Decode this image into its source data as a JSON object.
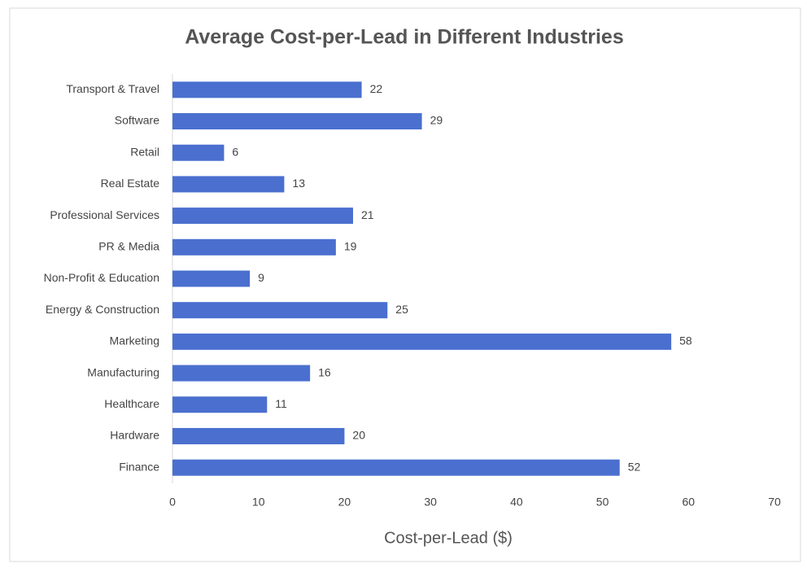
{
  "chart_data": {
    "type": "bar",
    "orientation": "horizontal",
    "title": "Average Cost-per-Lead in Different Industries",
    "x_label": "Cost-per-Lead ($)",
    "categories": [
      "Transport & Travel",
      "Software",
      "Retail",
      "Real Estate",
      "Professional Services",
      "PR & Media",
      "Non-Profit & Education",
      "Energy & Construction",
      "Marketing",
      "Manufacturing",
      "Healthcare",
      "Hardware",
      "Finance"
    ],
    "values": [
      22,
      29,
      6,
      13,
      21,
      19,
      9,
      25,
      58,
      16,
      11,
      20,
      52
    ],
    "color": "#4a6fcf",
    "xlim": [
      0,
      70
    ],
    "xticks": [
      0,
      10,
      20,
      30,
      40,
      50,
      60,
      70
    ],
    "grid": false
  }
}
